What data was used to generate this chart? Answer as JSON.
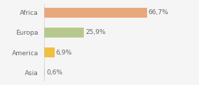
{
  "categories": [
    "Africa",
    "Europa",
    "America",
    "Asia"
  ],
  "values": [
    66.7,
    25.9,
    6.9,
    0.6
  ],
  "labels": [
    "66,7%",
    "25,9%",
    "6,9%",
    "0,6%"
  ],
  "bar_colors": [
    "#e8a87c",
    "#b5c98e",
    "#f0c040",
    "#b8c8d8"
  ],
  "background_color": "#f5f5f5",
  "xlim": [
    0,
    85
  ],
  "label_fontsize": 6.5,
  "tick_fontsize": 6.5,
  "bar_height": 0.5
}
